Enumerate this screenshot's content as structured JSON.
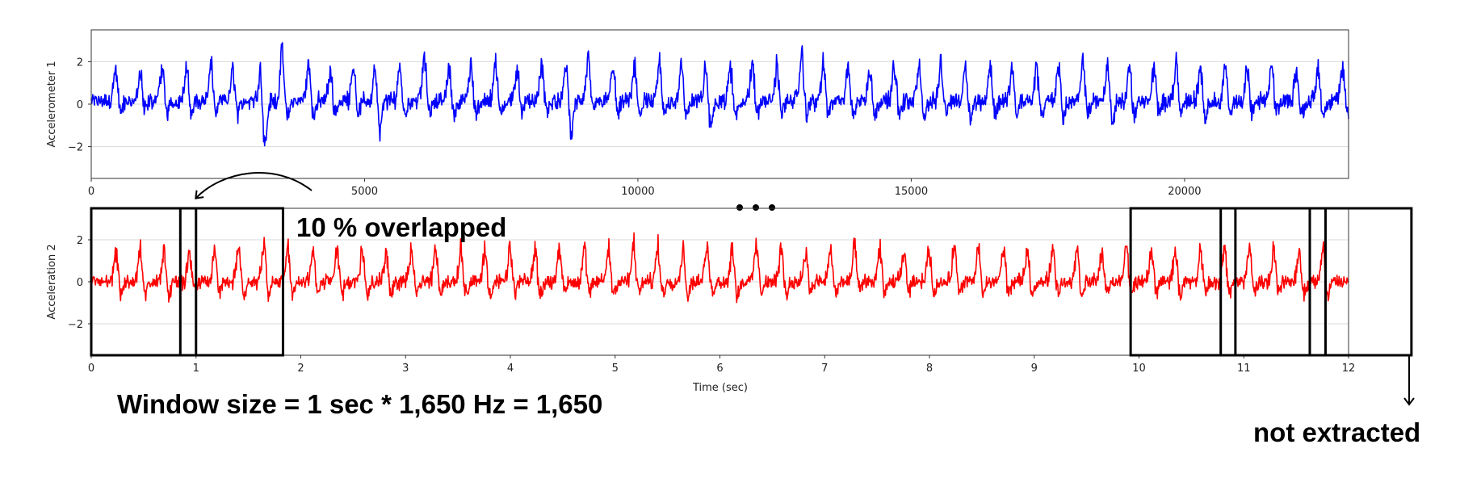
{
  "chart_data": [
    {
      "type": "line",
      "title": "",
      "xlabel": "",
      "ylabel": "Accelerometer 1",
      "xlim": [
        0,
        23000
      ],
      "ylim": [
        -3.5,
        3.5
      ],
      "grid": "horizontal",
      "xticks": [
        0,
        5000,
        10000,
        15000,
        20000
      ],
      "xtick_labels": [
        "0",
        "5000",
        "10000",
        "15000",
        "20000"
      ],
      "yticks": [
        2,
        0,
        -2
      ],
      "ytick_labels": [
        "2",
        "0",
        "−2"
      ],
      "series": [
        {
          "color": "#0000ff",
          "baseline": 0.15,
          "noise_amplitude": 0.3,
          "spike_positions": [
            450,
            900,
            1300,
            1750,
            2200,
            2600,
            3100,
            3500,
            3980,
            4380,
            4800,
            5200,
            5650,
            6100,
            6550,
            6950,
            7400,
            7800,
            8250,
            8700,
            9100,
            9550,
            9950,
            10400,
            10800,
            11250,
            11700,
            12100,
            12550,
            13000,
            13400,
            13850,
            14250,
            14700,
            15150,
            15550,
            16000,
            16450,
            16850,
            17300,
            17700,
            18150,
            18600,
            19000,
            19450,
            19850,
            20300,
            20750,
            21150,
            21600,
            22050,
            22450,
            22900
          ],
          "spike_peaks": [
            1.6,
            1.4,
            1.7,
            1.5,
            1.8,
            1.6,
            1.7,
            2.5,
            1.8,
            1.5,
            1.9,
            1.7,
            1.8,
            2.2,
            1.7,
            1.8,
            1.9,
            1.7,
            1.8,
            1.9,
            2.2,
            1.8,
            1.7,
            1.9,
            1.8,
            1.8,
            1.7,
            1.9,
            1.8,
            2.4,
            1.9,
            1.8,
            1.8,
            1.9,
            1.7,
            1.8,
            1.9,
            1.8,
            1.7,
            1.8,
            1.8,
            1.9,
            1.8,
            1.7,
            1.8,
            1.9,
            1.8,
            1.8,
            1.7,
            1.8,
            1.6,
            1.7,
            1.6
          ],
          "spike_troughs": [
            -0.8,
            -0.7,
            -0.9,
            -0.8,
            -0.9,
            -1.0,
            -2.5,
            -1.3,
            -0.9,
            -0.8,
            -0.9,
            -1.9,
            -1.0,
            -0.9,
            -0.9,
            -1.0,
            -1.0,
            -0.9,
            -0.9,
            -2.0,
            -1.0,
            -1.0,
            -0.9,
            -1.0,
            -1.1,
            -1.7,
            -1.0,
            -1.0,
            -0.9,
            -1.0,
            -1.0,
            -1.0,
            -1.0,
            -1.1,
            -1.0,
            -1.0,
            -1.2,
            -1.0,
            -1.0,
            -1.0,
            -1.2,
            -1.0,
            -1.4,
            -1.0,
            -1.0,
            -1.0,
            -1.2,
            -1.0,
            -1.0,
            -1.0,
            -1.0,
            -1.0,
            -0.9
          ]
        }
      ]
    },
    {
      "type": "line",
      "title": "",
      "xlabel": "Time (sec)",
      "ylabel": "Acceleration 2",
      "xlim": [
        0,
        12
      ],
      "ylim": [
        -3.5,
        3.5
      ],
      "grid": "horizontal",
      "xticks": [
        0,
        1,
        2,
        3,
        4,
        5,
        6,
        7,
        8,
        9,
        10,
        11,
        12
      ],
      "xtick_labels": [
        "0",
        "1",
        "2",
        "3",
        "4",
        "5",
        "6",
        "7",
        "8",
        "9",
        "10",
        "11",
        "12"
      ],
      "yticks": [
        2,
        0,
        -2
      ],
      "ytick_labels": [
        "2",
        "0",
        "−2"
      ],
      "series": [
        {
          "color": "#ff0000",
          "baseline": 0.0,
          "noise_amplitude": 0.25,
          "spike_positions": [
            0.24,
            0.47,
            0.7,
            0.94,
            1.18,
            1.41,
            1.65,
            1.88,
            2.12,
            2.35,
            2.59,
            2.82,
            3.06,
            3.29,
            3.53,
            3.76,
            4.0,
            4.24,
            4.47,
            4.71,
            4.94,
            5.18,
            5.41,
            5.65,
            5.88,
            6.12,
            6.35,
            6.59,
            6.82,
            7.06,
            7.29,
            7.53,
            7.76,
            8.0,
            8.24,
            8.47,
            8.71,
            8.94,
            9.18,
            9.41,
            9.65,
            9.88,
            10.12,
            10.35,
            10.59,
            10.82,
            11.06,
            11.29,
            11.53,
            11.76
          ],
          "spike_peaks": [
            1.6,
            1.6,
            1.7,
            1.5,
            1.7,
            1.6,
            1.8,
            1.6,
            1.7,
            1.6,
            1.7,
            1.6,
            1.8,
            1.7,
            1.7,
            1.6,
            1.7,
            1.6,
            1.8,
            1.7,
            1.7,
            1.9,
            1.7,
            1.6,
            1.8,
            1.7,
            1.9,
            1.7,
            1.6,
            1.7,
            1.8,
            1.7,
            1.6,
            1.7,
            1.8,
            1.7,
            1.7,
            1.6,
            1.8,
            1.7,
            1.6,
            1.8,
            1.7,
            1.6,
            1.7,
            1.6,
            1.7,
            1.7,
            1.6,
            1.6
          ],
          "spike_troughs": [
            -0.9,
            -0.8,
            -0.9,
            -0.8,
            -0.9,
            -0.8,
            -0.9,
            -0.9,
            -0.8,
            -0.9,
            -0.8,
            -0.9,
            -0.8,
            -0.9,
            -0.8,
            -0.9,
            -0.8,
            -0.9,
            -0.8,
            -0.9,
            -0.8,
            -0.9,
            -0.8,
            -0.9,
            -0.8,
            -0.9,
            -0.8,
            -0.9,
            -0.8,
            -0.9,
            -0.8,
            -0.9,
            -0.8,
            -0.9,
            -0.8,
            -0.9,
            -0.8,
            -0.9,
            -0.8,
            -0.9,
            -0.8,
            -0.9,
            -0.8,
            -0.9,
            -0.8,
            -0.9,
            -0.8,
            -0.9,
            -0.8,
            -0.9
          ]
        }
      ],
      "windows": [
        {
          "start": 0.0,
          "end": 1.0
        },
        {
          "start": 0.85,
          "end": 1.83
        },
        {
          "start": 9.92,
          "end": 10.92
        },
        {
          "start": 10.78,
          "end": 11.78
        },
        {
          "start": 11.63,
          "end": 12.6
        }
      ]
    }
  ],
  "annotations": {
    "overlap_text": "10 % overlapped",
    "window_text": "Window size = 1 sec * 1,650 Hz = 1,650",
    "not_extracted_text": "not extracted"
  }
}
